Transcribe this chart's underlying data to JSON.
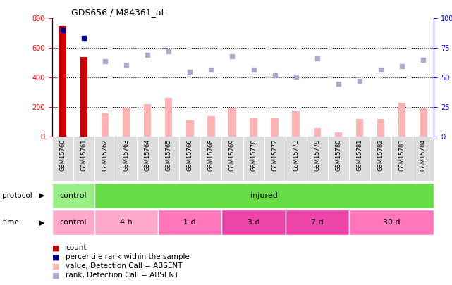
{
  "title": "GDS656 / M84361_at",
  "samples": [
    "GSM15760",
    "GSM15761",
    "GSM15762",
    "GSM15763",
    "GSM15764",
    "GSM15765",
    "GSM15766",
    "GSM15768",
    "GSM15769",
    "GSM15770",
    "GSM15772",
    "GSM15773",
    "GSM15779",
    "GSM15780",
    "GSM15781",
    "GSM15782",
    "GSM15783",
    "GSM15784"
  ],
  "count_values": [
    750,
    540,
    0,
    0,
    0,
    0,
    0,
    0,
    0,
    0,
    0,
    0,
    0,
    0,
    0,
    0,
    0,
    0
  ],
  "rank_values": [
    720,
    670,
    0,
    0,
    0,
    0,
    0,
    0,
    0,
    0,
    0,
    0,
    0,
    0,
    0,
    0,
    0,
    0
  ],
  "value_absent": [
    0,
    0,
    160,
    195,
    220,
    265,
    110,
    140,
    195,
    125,
    125,
    175,
    60,
    30,
    120,
    120,
    230,
    190
  ],
  "rank_absent_pct": [
    0,
    0,
    64,
    61,
    69,
    72,
    55,
    57,
    68,
    57,
    52,
    51,
    66,
    45,
    47,
    57,
    60,
    65
  ],
  "ylim_left": [
    0,
    800
  ],
  "ylim_right": [
    0,
    100
  ],
  "yticks_left": [
    0,
    200,
    400,
    600,
    800
  ],
  "yticks_right": [
    0,
    25,
    50,
    75,
    100
  ],
  "protocol_groups": [
    {
      "label": "control",
      "start": 0,
      "end": 2,
      "color": "#99EE88"
    },
    {
      "label": "injured",
      "start": 2,
      "end": 18,
      "color": "#66DD44"
    }
  ],
  "time_groups": [
    {
      "label": "control",
      "start": 0,
      "end": 2,
      "color": "#FFAACC"
    },
    {
      "label": "4 h",
      "start": 2,
      "end": 5,
      "color": "#FFAACC"
    },
    {
      "label": "1 d",
      "start": 5,
      "end": 8,
      "color": "#FF77BB"
    },
    {
      "label": "3 d",
      "start": 8,
      "end": 11,
      "color": "#EE44AA"
    },
    {
      "label": "7 d",
      "start": 11,
      "end": 14,
      "color": "#EE44AA"
    },
    {
      "label": "30 d",
      "start": 14,
      "end": 18,
      "color": "#FF77BB"
    }
  ],
  "count_color": "#CC0000",
  "rank_color": "#000099",
  "value_absent_color": "#FFB3B3",
  "rank_absent_color": "#AAAACC",
  "bg_color": "#FFFFFF",
  "bar_width": 0.35
}
